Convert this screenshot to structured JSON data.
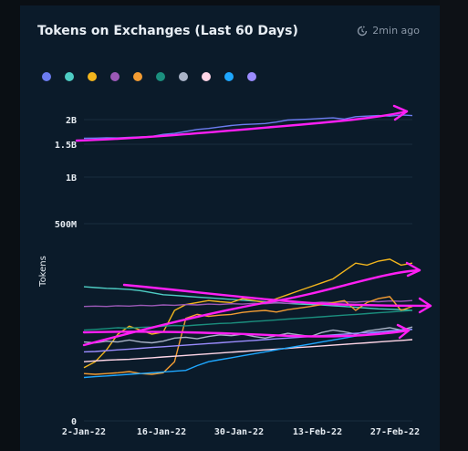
{
  "header": {
    "title": "Tokens on Exchanges (Last 60 Days)",
    "updated": "2min ago"
  },
  "colors": {
    "background": "#0b1b2a",
    "grid": "#1a2e3f",
    "annotation": "#ff1ff4"
  },
  "chart_data": {
    "type": "line",
    "title": "Tokens on Exchanges (Last 60 Days)",
    "xlabel": "",
    "ylabel": "Tokens",
    "y_ticks": [
      {
        "value": 0,
        "label": "0"
      },
      {
        "value": 500000000,
        "label": "500M"
      },
      {
        "value": 1000000000,
        "label": "1B"
      },
      {
        "value": 1500000000,
        "label": "1.5B"
      },
      {
        "value": 2000000000,
        "label": "2B"
      }
    ],
    "x_ticks": [
      "2-Jan-22",
      "16-Jan-22",
      "30-Jan-22",
      "13-Feb-22",
      "27-Feb-22"
    ],
    "scale": "compressed",
    "x_range": [
      "2-Jan-22",
      "1-Mar-22"
    ],
    "grid": true,
    "legend": "top-left",
    "series": [
      {
        "color": "#6c7cf0",
        "values": [
          1620,
          1625,
          1630,
          1628,
          1640,
          1650,
          1660,
          1700,
          1720,
          1760,
          1800,
          1820,
          1850,
          1880,
          1900,
          1910,
          1920,
          1950,
          1990,
          2000,
          2010,
          2020,
          2030,
          2010,
          2050,
          2060,
          2070,
          2060,
          2080,
          2070
        ]
      },
      {
        "color": "#4ecdc4",
        "values": [
          340,
          338,
          336,
          335,
          333,
          330,
          325,
          320,
          318,
          316,
          314,
          312,
          310,
          308,
          306,
          304,
          302,
          300,
          298,
          296,
          295,
          294,
          292,
          290,
          288,
          286,
          284,
          283,
          282,
          280
        ]
      },
      {
        "color": "#f2b51d",
        "values": [
          135,
          150,
          180,
          220,
          240,
          230,
          220,
          225,
          280,
          295,
          300,
          305,
          302,
          300,
          310,
          305,
          300,
          310,
          320,
          330,
          340,
          350,
          360,
          380,
          400,
          395,
          405,
          410,
          395,
          400
        ]
      },
      {
        "color": "#9b59b6",
        "values": [
          290,
          291,
          290,
          292,
          291,
          293,
          292,
          294,
          293,
          295,
          294,
          296,
          295,
          297,
          296,
          298,
          297,
          299,
          298,
          300,
          299,
          301,
          300,
          302,
          301,
          303,
          302,
          304,
          303,
          305
        ]
      },
      {
        "color": "#f39c33",
        "values": [
          120,
          118,
          120,
          122,
          125,
          120,
          118,
          122,
          150,
          260,
          270,
          265,
          268,
          270,
          275,
          278,
          280,
          276,
          282,
          286,
          290,
          295,
          300,
          305,
          280,
          300,
          310,
          315,
          280,
          290
        ]
      },
      {
        "color": "#1b8f7e",
        "values": [
          230,
          232,
          234,
          236,
          235,
          237,
          238,
          240,
          242,
          241,
          243,
          245,
          247,
          248,
          250,
          252,
          254,
          256,
          258,
          260,
          262,
          264,
          266,
          268,
          270,
          272,
          274,
          276,
          278,
          280
        ]
      },
      {
        "color": "#aab4c8",
        "values": [
          200,
          198,
          202,
          200,
          205,
          200,
          198,
          202,
          210,
          212,
          208,
          214,
          218,
          216,
          220,
          214,
          210,
          216,
          222,
          218,
          214,
          224,
          230,
          226,
          220,
          228,
          232,
          236,
          230,
          238
        ]
      },
      {
        "color": "#ffd6e7",
        "values": [
          150,
          152,
          154,
          155,
          156,
          158,
          160,
          162,
          164,
          166,
          168,
          170,
          172,
          174,
          176,
          178,
          180,
          182,
          184,
          186,
          188,
          190,
          192,
          194,
          196,
          198,
          200,
          202,
          204,
          206
        ]
      },
      {
        "color": "#1ea7ff",
        "values": [
          110,
          112,
          114,
          116,
          118,
          120,
          122,
          124,
          126,
          128,
          140,
          150,
          155,
          160,
          165,
          170,
          175,
          180,
          185,
          190,
          195,
          200,
          205,
          210,
          215,
          220,
          225,
          228,
          230,
          232
        ]
      },
      {
        "color": "#9b8cff",
        "values": [
          175,
          176,
          178,
          180,
          182,
          184,
          186,
          188,
          190,
          192,
          194,
          196,
          198,
          200,
          202,
          204,
          206,
          208,
          210,
          212,
          214,
          216,
          218,
          220,
          222,
          224,
          226,
          228,
          230,
          232
        ]
      }
    ]
  }
}
